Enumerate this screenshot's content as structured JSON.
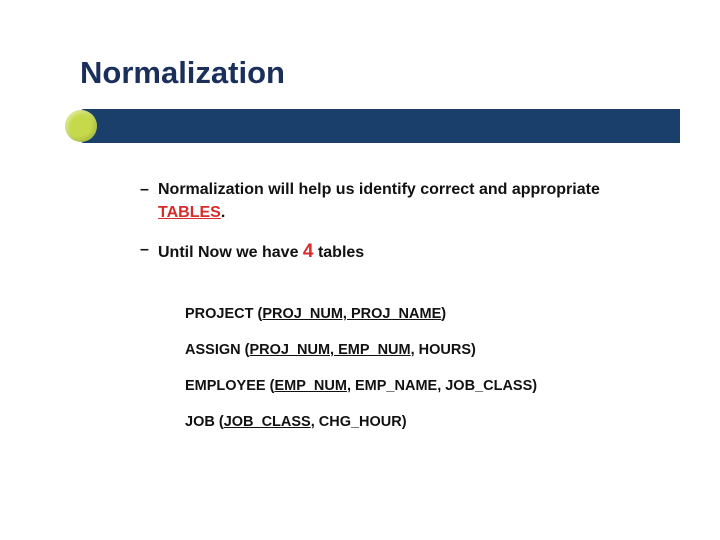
{
  "title": "Normalization",
  "bullet1_pre": "Normalization will help us identify correct and appropriate ",
  "bullet1_em": "TABLES",
  "bullet1_post": ".",
  "bullet2_pre": "Until Now we have ",
  "bullet2_num": "4",
  "bullet2_post": " tables",
  "tables": [
    {
      "name": "PROJECT",
      "open": " (",
      "pk": "PROJ_NUM,",
      "rest": " PROJ_NAME",
      "close": ")"
    },
    {
      "name": "ASSIGN",
      "open": " (",
      "pk": "PROJ_NUM, EMP_NUM",
      "rest": ", HOURS",
      "close": ")"
    },
    {
      "name": "EMPLOYEE",
      "open": " (",
      "pk": "EMP_NUM",
      "rest": ", EMP_NAME, JOB_CLASS",
      "close": ")"
    },
    {
      "name": "JOB",
      "open": " (",
      "pk": "JOB_CLASS",
      "rest": ", CHG_HOUR",
      "close": ")"
    }
  ],
  "colors": {
    "title_color": "#1a2f5a",
    "bar_color": "#1a3f6b",
    "dot_color": "#c5d94a",
    "red": "#d62c2c",
    "background": "#ffffff"
  }
}
